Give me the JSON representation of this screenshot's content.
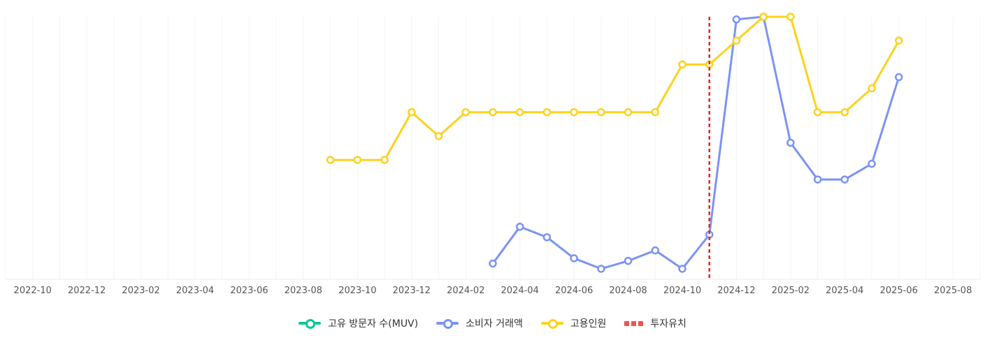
{
  "chart_data": {
    "type": "line",
    "x_ticks": [
      "2022-10",
      "2022-12",
      "2023-02",
      "2023-04",
      "2023-06",
      "2023-08",
      "2023-10",
      "2023-12",
      "2024-02",
      "2024-04",
      "2024-06",
      "2024-08",
      "2024-10",
      "2024-12",
      "2025-02",
      "2025-04",
      "2025-06",
      "2025-08"
    ],
    "x_range": [
      "2022-09",
      "2025-09"
    ],
    "grid": "vertical monthly",
    "legend_position": "bottom",
    "series": [
      {
        "name": "고유 방문자 수(MUV)",
        "color": "#00c896",
        "x": [],
        "values": []
      },
      {
        "name": "소비자 거래액",
        "color": "#7b93f5",
        "y_range": [
          0,
          100
        ],
        "x": [
          "2024-03",
          "2024-04",
          "2024-05",
          "2024-06",
          "2024-07",
          "2024-08",
          "2024-09",
          "2024-10",
          "2024-11",
          "2024-12",
          "2025-01",
          "2025-02",
          "2025-03",
          "2025-04",
          "2025-05",
          "2025-06"
        ],
        "values": [
          6,
          20,
          16,
          8,
          4,
          7,
          11,
          4,
          17,
          99,
          100,
          52,
          38,
          38,
          44,
          77
        ]
      },
      {
        "name": "고용인원",
        "color": "#fcd21d",
        "y_range": [
          0,
          11
        ],
        "x": [
          "2023-09",
          "2023-10",
          "2023-11",
          "2023-12",
          "2024-01",
          "2024-02",
          "2024-03",
          "2024-04",
          "2024-05",
          "2024-06",
          "2024-07",
          "2024-08",
          "2024-09",
          "2024-10",
          "2024-11",
          "2024-12",
          "2025-01",
          "2025-02",
          "2025-03",
          "2025-04",
          "2025-05",
          "2025-06"
        ],
        "values": [
          5,
          5,
          5,
          7,
          6,
          7,
          7,
          7,
          7,
          7,
          7,
          7,
          7,
          9,
          9,
          10,
          11,
          11,
          7,
          7,
          8,
          10
        ]
      }
    ],
    "annotations": [
      {
        "name": "투자유치",
        "type": "vertical-dashed-line",
        "x": "2024-11",
        "color": "#f01e1e"
      }
    ]
  }
}
